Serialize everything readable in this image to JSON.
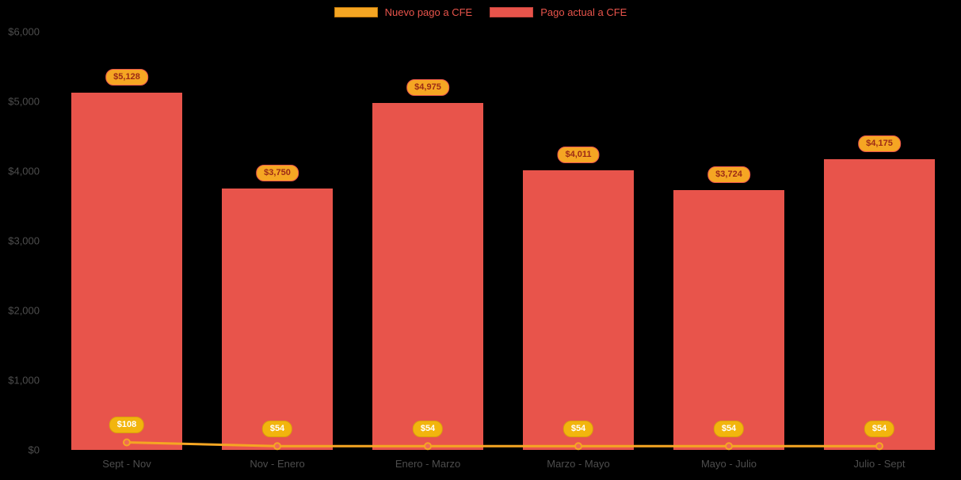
{
  "chart_data": {
    "type": "bar",
    "title": "",
    "categories": [
      "Sept - Nov",
      "Nov - Enero",
      "Enero - Marzo",
      "Marzo - Mayo",
      "Mayo - Julio",
      "Julio - Sept"
    ],
    "series": [
      {
        "name": "Nuevo pago a CFE",
        "type": "line",
        "color": "#f5a623",
        "values": [
          108,
          54,
          54,
          54,
          54,
          54
        ],
        "labels": [
          "$108",
          "$54",
          "$54",
          "$54",
          "$54",
          "$54"
        ]
      },
      {
        "name": "Pago actual a CFE",
        "type": "bar",
        "color": "#e8544b",
        "values": [
          5128,
          3750,
          4975,
          4011,
          3724,
          4175
        ],
        "labels": [
          "$5,128",
          "$3,750",
          "$4,975",
          "$4,011",
          "$3,724",
          "$4,175"
        ]
      }
    ],
    "xlabel": "",
    "ylabel": "",
    "ylim": [
      0,
      6000
    ],
    "yticks": [
      "$0",
      "$1,000",
      "$2,000",
      "$3,000",
      "$4,000",
      "$5,000",
      "$6,000"
    ],
    "legend_position": "top",
    "grid": false
  },
  "colors": {
    "background": "#000000",
    "bar": "#e8544b",
    "line": "#f5a623",
    "bar_label_bg": "#f5a623",
    "bar_label_text": "#9c2a16",
    "bar_label_border": "#e8544b",
    "line_label_bg": "#f2b50d",
    "line_label_text": "#ffffff",
    "line_label_border": "#d9a00b",
    "axis_text": "#4d4d4d",
    "legend_text": "#e8544b",
    "marker_fill": "#ef6a56",
    "marker_stroke": "#f5a623"
  }
}
